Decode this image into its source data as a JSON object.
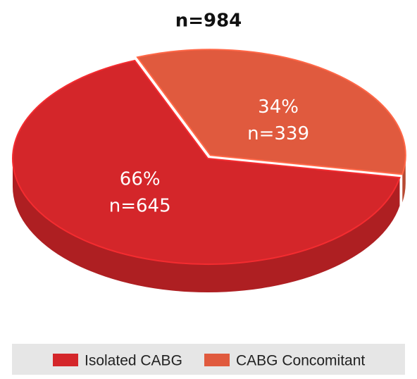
{
  "chart_data": {
    "type": "pie",
    "title": "n=984",
    "categories": [
      "Isolated CABG",
      "CABG Concomitant"
    ],
    "values": [
      66,
      34
    ],
    "value_labels": [
      "66%",
      "34%"
    ],
    "counts": [
      645,
      339
    ],
    "count_labels": [
      "n=645",
      "n=339"
    ],
    "colors": [
      "#d4262a",
      "#e05a3e"
    ],
    "legend": "bottom"
  }
}
